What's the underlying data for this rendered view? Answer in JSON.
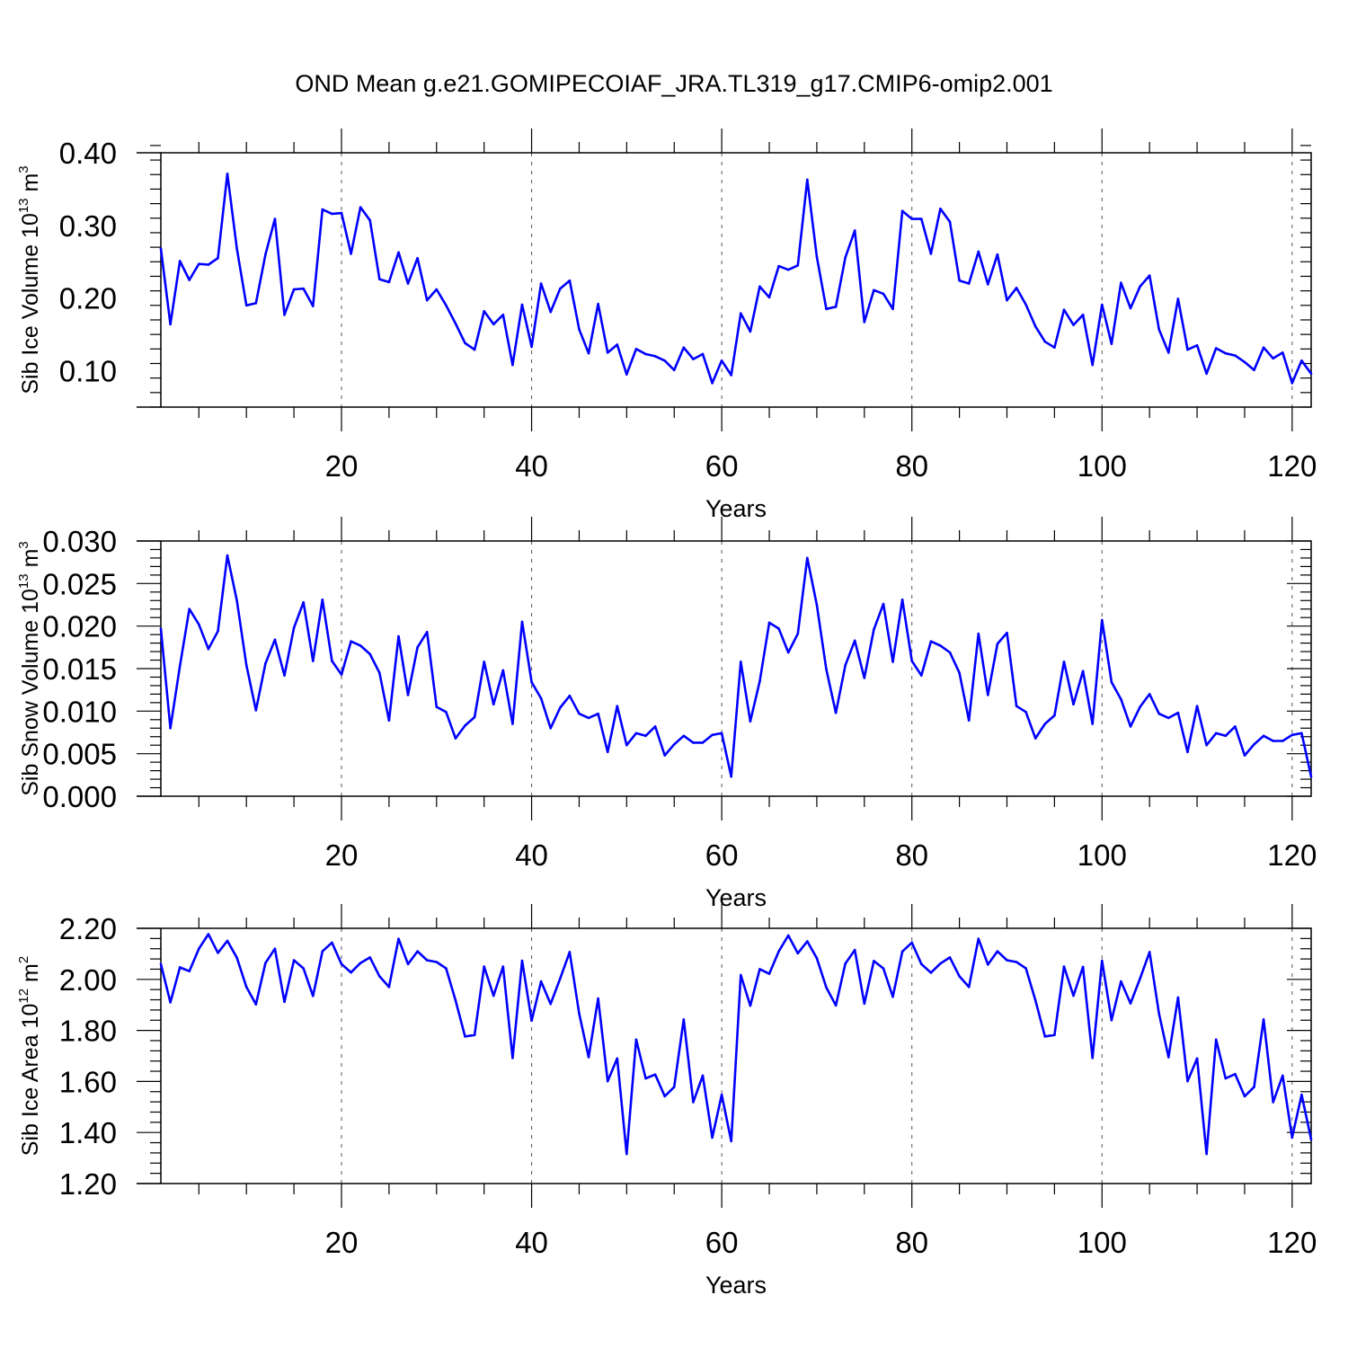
{
  "title": "OND Mean g.e21.GOMIPECOIAF_JRA.TL319_g17.CMIP6-omip2.001",
  "colors": {
    "series": "#0000ff",
    "axis": "#000000",
    "grid": "#555555"
  },
  "chart_data": [
    {
      "type": "line",
      "ylabel": "Sib Ice Volume 10",
      "ylabel_exp": "13",
      "ylabel_unit": " m",
      "ylabel_unit_exp": "3",
      "xlabel": "Years",
      "xlim": [
        1,
        122
      ],
      "ylim": [
        0.05,
        0.4
      ],
      "xticks": [
        20,
        40,
        60,
        80,
        100,
        120
      ],
      "xtick_labels": [
        "20",
        "40",
        "60",
        "80",
        "100",
        "120"
      ],
      "yticks": [
        0.1,
        0.2,
        0.3,
        0.4
      ],
      "ytick_labels": [
        "0.10",
        "0.20",
        "0.30",
        "0.40"
      ],
      "grid": "vertical dashed at x ticks",
      "series": [
        {
          "values": [
            0.268,
            0.164,
            0.251,
            0.225,
            0.247,
            0.246,
            0.255,
            0.371,
            0.268,
            0.19,
            0.193,
            0.26,
            0.309,
            0.177,
            0.212,
            0.213,
            0.189,
            0.322,
            0.316,
            0.317,
            0.261,
            0.325,
            0.307,
            0.226,
            0.222,
            0.263,
            0.22,
            0.255,
            0.197,
            0.212,
            0.19,
            0.165,
            0.138,
            0.129,
            0.182,
            0.164,
            0.177,
            0.108,
            0.191,
            0.133,
            0.22,
            0.181,
            0.213,
            0.224,
            0.157,
            0.124,
            0.192,
            0.125,
            0.136,
            0.095,
            0.13,
            0.123,
            0.12,
            0.114,
            0.101,
            0.132,
            0.116,
            0.123,
            0.083,
            0.114,
            0.094,
            0.179,
            0.154,
            0.216,
            0.201,
            0.244,
            0.239,
            0.245,
            0.363,
            0.257,
            0.185,
            0.188,
            0.256,
            0.293,
            0.167,
            0.211,
            0.206,
            0.185,
            0.32,
            0.309,
            0.309,
            0.261,
            0.323,
            0.305,
            0.224,
            0.22,
            0.264,
            0.219,
            0.26,
            0.197,
            0.214,
            0.191,
            0.161,
            0.14,
            0.132,
            0.184,
            0.163,
            0.177,
            0.108,
            0.191,
            0.137,
            0.221,
            0.186,
            0.216,
            0.231,
            0.157,
            0.125,
            0.199,
            0.129,
            0.135,
            0.096,
            0.131,
            0.124,
            0.121,
            0.112,
            0.101,
            0.132,
            0.117,
            0.125,
            0.083,
            0.114,
            0.096
          ]
        }
      ]
    },
    {
      "type": "line",
      "ylabel": "Sib Snow Volume 10",
      "ylabel_exp": "13",
      "ylabel_unit": " m",
      "ylabel_unit_exp": "3",
      "xlabel": "Years",
      "xlim": [
        1,
        122
      ],
      "ylim": [
        0.0,
        0.03
      ],
      "xticks": [
        20,
        40,
        60,
        80,
        100,
        120
      ],
      "xtick_labels": [
        "20",
        "40",
        "60",
        "80",
        "100",
        "120"
      ],
      "yticks": [
        0.0,
        0.005,
        0.01,
        0.015,
        0.02,
        0.025,
        0.03
      ],
      "ytick_labels": [
        "0.000",
        "0.005",
        "0.010",
        "0.015",
        "0.020",
        "0.025",
        "0.030"
      ],
      "grid": "vertical dashed at x ticks",
      "series": [
        {
          "values": [
            0.0197,
            0.008,
            0.0153,
            0.022,
            0.0202,
            0.0173,
            0.0194,
            0.0283,
            0.023,
            0.0154,
            0.0101,
            0.0156,
            0.0184,
            0.0142,
            0.0198,
            0.0228,
            0.0159,
            0.0231,
            0.0159,
            0.0143,
            0.0182,
            0.0177,
            0.0167,
            0.0145,
            0.0089,
            0.0188,
            0.0119,
            0.0175,
            0.0193,
            0.0105,
            0.0099,
            0.0068,
            0.0083,
            0.0093,
            0.0158,
            0.0108,
            0.0148,
            0.0085,
            0.0205,
            0.0134,
            0.0115,
            0.008,
            0.0104,
            0.0118,
            0.0097,
            0.0092,
            0.0097,
            0.0052,
            0.0106,
            0.006,
            0.0074,
            0.0071,
            0.0082,
            0.0048,
            0.0061,
            0.0071,
            0.0063,
            0.0063,
            0.0072,
            0.0074,
            0.0023,
            0.0158,
            0.0088,
            0.0135,
            0.0204,
            0.0197,
            0.0169,
            0.0191,
            0.028,
            0.0225,
            0.0149,
            0.0098,
            0.0154,
            0.0183,
            0.0139,
            0.0196,
            0.0226,
            0.0158,
            0.0231,
            0.0159,
            0.0142,
            0.0182,
            0.0177,
            0.0169,
            0.0145,
            0.0089,
            0.0191,
            0.0119,
            0.0179,
            0.0192,
            0.0106,
            0.0099,
            0.0068,
            0.0085,
            0.0095,
            0.0158,
            0.0108,
            0.0147,
            0.0085,
            0.0207,
            0.0134,
            0.0114,
            0.0082,
            0.0105,
            0.012,
            0.0097,
            0.0092,
            0.0098,
            0.0052,
            0.0106,
            0.006,
            0.0074,
            0.0071,
            0.0082,
            0.0048,
            0.0061,
            0.0071,
            0.0065,
            0.0065,
            0.0072,
            0.0074,
            0.0023
          ]
        }
      ]
    },
    {
      "type": "line",
      "ylabel": "Sib Ice Area 10",
      "ylabel_exp": "12",
      "ylabel_unit": " m",
      "ylabel_unit_exp": "2",
      "xlabel": "Years",
      "xlim": [
        1,
        122
      ],
      "ylim": [
        1.2,
        2.2
      ],
      "xticks": [
        20,
        40,
        60,
        80,
        100,
        120
      ],
      "xtick_labels": [
        "20",
        "40",
        "60",
        "80",
        "100",
        "120"
      ],
      "yticks": [
        1.2,
        1.4,
        1.6,
        1.8,
        2.0,
        2.2
      ],
      "ytick_labels": [
        "1.20",
        "1.40",
        "1.60",
        "1.80",
        "2.00",
        "2.20"
      ],
      "grid": "vertical dashed at x ticks",
      "series": [
        {
          "values": [
            2.06,
            1.91,
            2.047,
            2.032,
            2.12,
            2.177,
            2.104,
            2.151,
            2.085,
            1.97,
            1.902,
            2.064,
            2.12,
            1.912,
            2.075,
            2.043,
            1.935,
            2.11,
            2.144,
            2.06,
            2.027,
            2.064,
            2.086,
            2.012,
            1.97,
            2.159,
            2.06,
            2.11,
            2.075,
            2.068,
            2.043,
            1.918,
            1.776,
            1.782,
            2.05,
            1.936,
            2.05,
            1.692,
            2.073,
            1.838,
            1.992,
            1.904,
            2.003,
            2.107,
            1.866,
            1.695,
            1.925,
            1.601,
            1.69,
            1.316,
            1.764,
            1.612,
            1.627,
            1.542,
            1.578,
            1.843,
            1.519,
            1.623,
            1.38,
            1.548,
            1.366,
            2.017,
            1.897,
            2.04,
            2.022,
            2.11,
            2.172,
            2.102,
            2.149,
            2.083,
            1.968,
            1.898,
            2.062,
            2.115,
            1.905,
            2.072,
            2.043,
            1.932,
            2.109,
            2.144,
            2.06,
            2.026,
            2.062,
            2.086,
            2.012,
            1.97,
            2.159,
            2.058,
            2.11,
            2.075,
            2.068,
            2.043,
            1.918,
            1.776,
            1.782,
            2.05,
            1.936,
            2.049,
            1.692,
            2.073,
            1.84,
            1.992,
            1.906,
            2.003,
            2.107,
            1.866,
            1.695,
            1.929,
            1.601,
            1.69,
            1.316,
            1.764,
            1.612,
            1.629,
            1.542,
            1.578,
            1.843,
            1.519,
            1.623,
            1.38,
            1.548,
            1.373
          ]
        }
      ]
    }
  ]
}
